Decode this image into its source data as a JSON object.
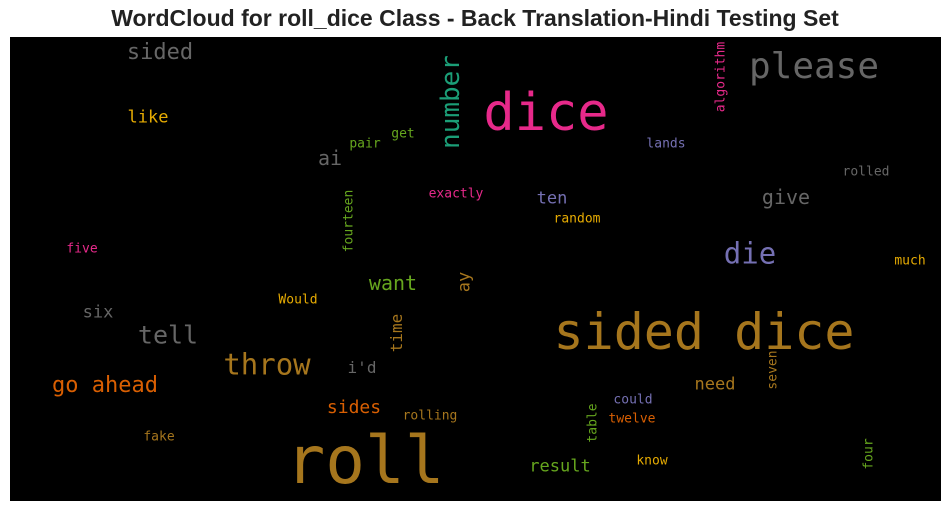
{
  "chart_data": {
    "type": "wordcloud",
    "title": "WordCloud for roll_dice Class - Back Translation-Hindi Testing Set",
    "background": "#000000",
    "words": [
      {
        "text": "roll",
        "color": "#a6761d"
      },
      {
        "text": "sided dice",
        "color": "#a6761d"
      },
      {
        "text": "dice",
        "color": "#e7298a"
      },
      {
        "text": "please",
        "color": "#666666"
      },
      {
        "text": "throw",
        "color": "#a6761d"
      },
      {
        "text": "die",
        "color": "#7570b3"
      },
      {
        "text": "number",
        "color": "#1b9e77",
        "vertical": true
      },
      {
        "text": "go ahead",
        "color": "#d95f02"
      },
      {
        "text": "tell",
        "color": "#666666"
      },
      {
        "text": "sided",
        "color": "#666666"
      },
      {
        "text": "want",
        "color": "#66a61e"
      },
      {
        "text": "give",
        "color": "#666666"
      },
      {
        "text": "ai",
        "color": "#666666"
      },
      {
        "text": "sides",
        "color": "#d95f02"
      },
      {
        "text": "result",
        "color": "#66a61e"
      },
      {
        "text": "need",
        "color": "#a6761d"
      },
      {
        "text": "like",
        "color": "#e6ab02"
      },
      {
        "text": "ten",
        "color": "#7570b3"
      },
      {
        "text": "six",
        "color": "#666666"
      },
      {
        "text": "time",
        "color": "#a6761d",
        "vertical": true
      },
      {
        "text": "ay",
        "color": "#a6761d",
        "vertical": true
      },
      {
        "text": "i'd",
        "color": "#666666"
      },
      {
        "text": "algorithm",
        "color": "#e7298a",
        "vertical": true
      },
      {
        "text": "fourteen",
        "color": "#66a61e",
        "vertical": true
      },
      {
        "text": "rolled",
        "color": "#666666"
      },
      {
        "text": "lands",
        "color": "#7570b3"
      },
      {
        "text": "exactly",
        "color": "#e7298a"
      },
      {
        "text": "random",
        "color": "#e6ab02"
      },
      {
        "text": "five",
        "color": "#e7298a"
      },
      {
        "text": "much",
        "color": "#e6ab02"
      },
      {
        "text": "Would",
        "color": "#e6ab02"
      },
      {
        "text": "pair",
        "color": "#66a61e"
      },
      {
        "text": "get",
        "color": "#66a61e"
      },
      {
        "text": "rolling",
        "color": "#a6761d"
      },
      {
        "text": "twelve",
        "color": "#d95f02"
      },
      {
        "text": "could",
        "color": "#7570b3"
      },
      {
        "text": "table",
        "color": "#66a61e",
        "vertical": true
      },
      {
        "text": "seven",
        "color": "#a6761d",
        "vertical": true
      },
      {
        "text": "fake",
        "color": "#a6761d"
      },
      {
        "text": "know",
        "color": "#e6ab02"
      },
      {
        "text": "four",
        "color": "#66a61e",
        "vertical": true
      }
    ]
  }
}
